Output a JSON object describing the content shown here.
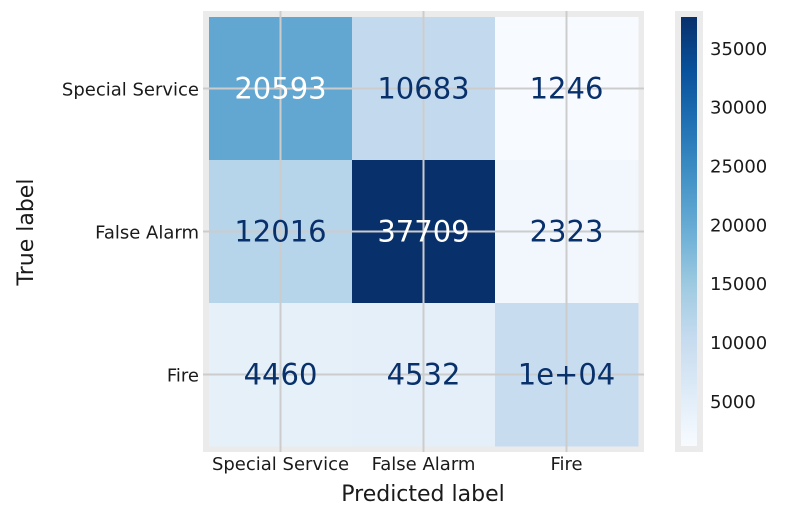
{
  "chart_data": {
    "type": "heatmap",
    "kind": "confusion-matrix",
    "xlabel": "Predicted label",
    "ylabel": "True label",
    "x_categories": [
      "Special Service",
      "False Alarm",
      "Fire"
    ],
    "y_categories": [
      "Special Service",
      "False Alarm",
      "Fire"
    ],
    "values": [
      [
        20593,
        10683,
        1246
      ],
      [
        12016,
        37709,
        2323
      ],
      [
        4460,
        4532,
        10000
      ]
    ],
    "cell_labels": [
      [
        "20593",
        "10683",
        "1246"
      ],
      [
        "12016",
        "37709",
        "2323"
      ],
      [
        "4460",
        "4532",
        "1e+04"
      ]
    ],
    "colormap": "Blues",
    "colorbar": {
      "min": 1246,
      "max": 37709,
      "ticks": [
        5000,
        10000,
        15000,
        20000,
        25000,
        30000,
        35000
      ],
      "tick_labels": [
        "5000",
        "10000",
        "15000",
        "20000",
        "25000",
        "30000",
        "35000"
      ]
    },
    "grid": true,
    "colors": {
      "frame": "#ebebeb",
      "grid": "#cccccc",
      "text_dark": "#08306b",
      "text_light": "#ffffff",
      "tick_text": "#1a1a1a"
    }
  }
}
